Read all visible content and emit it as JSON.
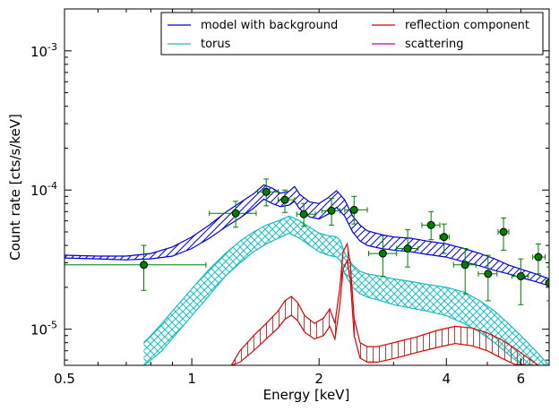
{
  "chart_data": {
    "type": "line",
    "xlabel": "Energy [keV]",
    "ylabel": "Count rate [cts/s/keV]",
    "x_scale": "log",
    "y_scale": "log",
    "xlim": [
      0.5,
      7.0
    ],
    "ylim": [
      5.5e-06,
      0.002
    ],
    "x_ticks": [
      {
        "value": 0.5,
        "label": "0.5"
      },
      {
        "value": 1,
        "label": "1"
      },
      {
        "value": 2,
        "label": "2"
      },
      {
        "value": 4,
        "label": "4"
      },
      {
        "value": 6,
        "label": "6"
      }
    ],
    "y_ticks": [
      {
        "value": 1e-05,
        "base": "10",
        "exp": "-5"
      },
      {
        "value": 0.0001,
        "base": "10",
        "exp": "-4"
      },
      {
        "value": 0.001,
        "base": "10",
        "exp": "-3"
      }
    ],
    "legend": {
      "placement": "top-right",
      "columns": 2
    },
    "series": [
      {
        "name": "model with background",
        "color": "#0000dd",
        "hatch": "diagonal",
        "x": [
          0.5,
          0.6,
          0.7,
          0.8,
          0.9,
          1.0,
          1.1,
          1.2,
          1.3,
          1.4,
          1.48,
          1.55,
          1.62,
          1.7,
          1.75,
          1.8,
          1.9,
          2.0,
          2.1,
          2.2,
          2.3,
          2.4,
          2.5,
          2.6,
          2.8,
          3.0,
          3.3,
          3.6,
          4.0,
          4.4,
          4.8,
          5.2,
          5.6,
          6.0,
          6.5,
          7.0
        ],
        "upper": [
          3.4e-05,
          3.35e-05,
          3.35e-05,
          3.5e-05,
          3.9e-05,
          4.6e-05,
          5.6e-05,
          6.9e-05,
          8.1e-05,
          9.4e-05,
          0.000109,
          0.000103,
          9.5e-05,
          9.8e-05,
          0.000106,
          9.3e-05,
          8.2e-05,
          8e-05,
          8.8e-05,
          9.9e-05,
          8.5e-05,
          6.5e-05,
          5.6e-05,
          5.1e-05,
          4.8e-05,
          4.6e-05,
          4.5e-05,
          4.3e-05,
          4.1e-05,
          3.8e-05,
          3.5e-05,
          3.2e-05,
          2.9e-05,
          2.7e-05,
          2.5e-05,
          2.3e-05
        ],
        "lower": [
          3.25e-05,
          3.2e-05,
          3.15e-05,
          3.2e-05,
          3.35e-05,
          3.8e-05,
          4.5e-05,
          5.4e-05,
          6.3e-05,
          7.4e-05,
          8.6e-05,
          8e-05,
          7.6e-05,
          7.8e-05,
          8.3e-05,
          7.3e-05,
          6.4e-05,
          6.2e-05,
          6.7e-05,
          7.5e-05,
          6.5e-05,
          5e-05,
          4.3e-05,
          4e-05,
          3.8e-05,
          3.7e-05,
          3.6e-05,
          3.45e-05,
          3.3e-05,
          3.05e-05,
          2.85e-05,
          2.65e-05,
          2.5e-05,
          2.35e-05,
          2.2e-05,
          2.05e-05
        ]
      },
      {
        "name": "torus",
        "color": "#17bebf",
        "hatch": "cross",
        "x": [
          0.77,
          0.8,
          0.85,
          0.9,
          1.0,
          1.1,
          1.2,
          1.3,
          1.4,
          1.5,
          1.6,
          1.7,
          1.8,
          1.9,
          2.0,
          2.1,
          2.2,
          2.25,
          2.3,
          2.4,
          2.5,
          2.6,
          2.8,
          3.0,
          3.3,
          3.6,
          4.0,
          4.4,
          4.8,
          5.2,
          5.6,
          6.0,
          6.5,
          7.0
        ],
        "upper": [
          8e-06,
          9e-06,
          1.1e-05,
          1.35e-05,
          1.95e-05,
          2.7e-05,
          3.5e-05,
          4.3e-05,
          5e-05,
          5.6e-05,
          6e-05,
          6.5e-05,
          6e-05,
          5.4e-05,
          4.9e-05,
          4.7e-05,
          4.6e-05,
          4.3e-05,
          3.5e-05,
          2.9e-05,
          2.6e-05,
          2.5e-05,
          2.4e-05,
          2.3e-05,
          2.2e-05,
          2.1e-05,
          2e-05,
          1.85e-05,
          1.6e-05,
          1.35e-05,
          1.1e-05,
          9e-06,
          7e-06,
          5.5e-06
        ],
        "lower": [
          5.5e-06,
          6e-06,
          7e-06,
          8.6e-06,
          1.25e-05,
          1.75e-05,
          2.4e-05,
          3e-05,
          3.6e-05,
          4.1e-05,
          4.5e-05,
          4.9e-05,
          4.5e-05,
          4e-05,
          3.6e-05,
          3.4e-05,
          3.3e-05,
          3.1e-05,
          2.5e-05,
          2e-05,
          1.8e-05,
          1.7e-05,
          1.6e-05,
          1.5e-05,
          1.42e-05,
          1.35e-05,
          1.25e-05,
          1.1e-05,
          9.5e-06,
          8e-06,
          6.6e-06,
          5.6e-06,
          5.5e-06,
          5.5e-06
        ]
      },
      {
        "name": "reflection component",
        "color": "#dd0000",
        "hatch": "vertical",
        "x": [
          1.24,
          1.3,
          1.4,
          1.5,
          1.6,
          1.66,
          1.72,
          1.78,
          1.85,
          1.95,
          2.05,
          2.12,
          2.18,
          2.24,
          2.28,
          2.33,
          2.37,
          2.42,
          2.5,
          2.6,
          2.75,
          2.9,
          3.1,
          3.4,
          3.8,
          4.2,
          4.6,
          5.0,
          5.4,
          5.8,
          6.2,
          6.6
        ],
        "upper": [
          5.5e-06,
          7e-06,
          9e-06,
          1.1e-05,
          1.35e-05,
          1.6e-05,
          1.72e-05,
          1.55e-05,
          1.25e-05,
          1.1e-05,
          1.2e-05,
          1.4e-05,
          1.1e-05,
          2e-05,
          3.6e-05,
          4.1e-05,
          3e-05,
          1.2e-05,
          8e-06,
          7.5e-06,
          7.5e-06,
          7.8e-06,
          8.2e-06,
          8.8e-06,
          9.8e-06,
          1.05e-05,
          1.02e-05,
          9.4e-06,
          8.4e-06,
          7.3e-06,
          6.3e-06,
          5.5e-06
        ],
        "lower": [
          5.5e-06,
          5.8e-06,
          7e-06,
          8.5e-06,
          1.02e-05,
          1.18e-05,
          1.26e-05,
          1.15e-05,
          9.5e-06,
          8.5e-06,
          9e-06,
          1.05e-05,
          8.5e-06,
          1.5e-05,
          2.7e-05,
          3.1e-05,
          2.3e-05,
          9e-06,
          6.2e-06,
          5.8e-06,
          5.8e-06,
          6e-06,
          6.3e-06,
          6.8e-06,
          7.4e-06,
          7.9e-06,
          7.6e-06,
          7e-06,
          6.2e-06,
          5.6e-06,
          5.5e-06,
          5.5e-06
        ]
      },
      {
        "name": "scattering",
        "color": "#bf00bf",
        "hatch": "none",
        "x": [],
        "upper": [],
        "lower": []
      }
    ],
    "data_points": {
      "color": "#007f00",
      "marker_fill": "#007f00",
      "points": [
        {
          "x": 0.77,
          "y": 2.9e-05,
          "xerr": [
            0.5,
            1.08
          ],
          "yerr": [
            1.9e-05,
            4e-05
          ]
        },
        {
          "x": 1.27,
          "y": 6.8e-05,
          "xerr": [
            1.1,
            1.42
          ],
          "yerr": [
            5.4e-05,
            8.3e-05
          ]
        },
        {
          "x": 1.5,
          "y": 9.7e-05,
          "xerr": [
            1.43,
            1.6
          ],
          "yerr": [
            7.7e-05,
            0.00012
          ]
        },
        {
          "x": 1.66,
          "y": 8.5e-05,
          "xerr": [
            1.6,
            1.75
          ],
          "yerr": [
            6.9e-05,
            0.0001
          ]
        },
        {
          "x": 1.84,
          "y": 6.7e-05,
          "xerr": [
            1.77,
            1.96
          ],
          "yerr": [
            5.5e-05,
            8e-05
          ]
        },
        {
          "x": 2.14,
          "y": 7.1e-05,
          "xerr": [
            2.03,
            2.24
          ],
          "yerr": [
            5.6e-05,
            8.7e-05
          ]
        },
        {
          "x": 2.42,
          "y": 7.2e-05,
          "xerr": [
            2.3,
            2.6
          ],
          "yerr": [
            5.7e-05,
            9e-05
          ]
        },
        {
          "x": 2.83,
          "y": 3.5e-05,
          "xerr": [
            2.62,
            3.05
          ],
          "yerr": [
            2.4e-05,
            4.7e-05
          ]
        },
        {
          "x": 3.24,
          "y": 3.8e-05,
          "xerr": [
            3.05,
            3.43
          ],
          "yerr": [
            2.8e-05,
            5.2e-05
          ]
        },
        {
          "x": 3.68,
          "y": 5.6e-05,
          "xerr": [
            3.5,
            3.86
          ],
          "yerr": [
            4.4e-05,
            7e-05
          ]
        },
        {
          "x": 3.95,
          "y": 4.6e-05,
          "xerr": [
            3.86,
            4.06
          ],
          "yerr": [
            3.5e-05,
            5.7e-05
          ]
        },
        {
          "x": 4.43,
          "y": 2.9e-05,
          "xerr": [
            4.16,
            4.7
          ],
          "yerr": [
            1.8e-05,
            3.8e-05
          ]
        },
        {
          "x": 5.02,
          "y": 2.5e-05,
          "xerr": [
            4.76,
            5.27
          ],
          "yerr": [
            1.6e-05,
            3.4e-05
          ]
        },
        {
          "x": 5.46,
          "y": 5e-05,
          "xerr": [
            5.3,
            5.62
          ],
          "yerr": [
            3.7e-05,
            6.3e-05
          ]
        },
        {
          "x": 6.0,
          "y": 2.4e-05,
          "xerr": [
            5.72,
            6.25
          ],
          "yerr": [
            1.5e-05,
            3.2e-05
          ]
        },
        {
          "x": 6.6,
          "y": 3.3e-05,
          "xerr": [
            6.4,
            6.85
          ],
          "yerr": [
            2.5e-05,
            4.1e-05
          ]
        },
        {
          "x": 7.0,
          "y": 2.15e-05,
          "xerr": [
            6.9,
            7.0
          ],
          "yerr": [
            1.6e-05,
            2.8e-05
          ]
        }
      ]
    }
  }
}
